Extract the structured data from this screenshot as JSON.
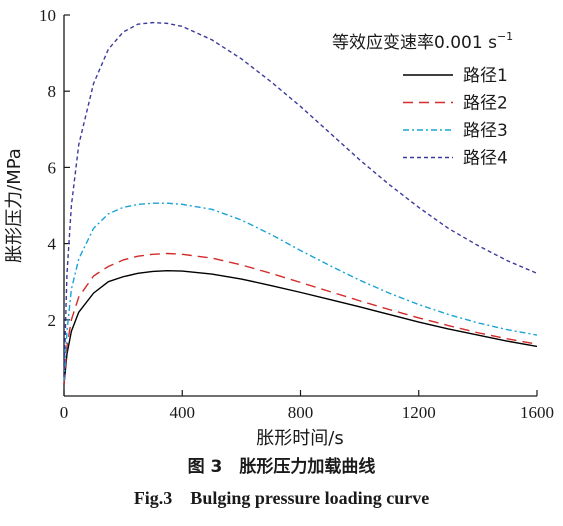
{
  "chart_data": {
    "type": "line",
    "xlabel": "胀形时间/s",
    "ylabel": "胀形压力/MPa",
    "xlim": [
      0,
      1600
    ],
    "ylim": [
      0,
      10
    ],
    "xticks": [
      0,
      400,
      800,
      1200,
      1600
    ],
    "yticks": [
      2,
      4,
      6,
      8,
      10
    ],
    "grid": false,
    "legend_title": "等效应变速率0.001 s",
    "legend_title_sup": "−1",
    "legend_position": "top-right",
    "series": [
      {
        "name": "路径1",
        "color": "#000000",
        "dash": "solid",
        "x": [
          0,
          10,
          25,
          50,
          100,
          150,
          200,
          250,
          300,
          350,
          400,
          500,
          600,
          700,
          800,
          900,
          1000,
          1100,
          1200,
          1300,
          1400,
          1500,
          1600
        ],
        "y": [
          0.3,
          1.1,
          1.7,
          2.2,
          2.7,
          3.0,
          3.13,
          3.22,
          3.27,
          3.29,
          3.28,
          3.2,
          3.07,
          2.9,
          2.72,
          2.53,
          2.34,
          2.14,
          1.94,
          1.76,
          1.6,
          1.44,
          1.3
        ]
      },
      {
        "name": "路径2",
        "color": "#d42a2a",
        "dash": "10,6",
        "x": [
          0,
          10,
          25,
          50,
          100,
          150,
          200,
          250,
          300,
          350,
          400,
          500,
          600,
          700,
          800,
          900,
          1000,
          1100,
          1200,
          1300,
          1400,
          1500,
          1600
        ],
        "y": [
          0.3,
          1.3,
          2.0,
          2.6,
          3.15,
          3.4,
          3.57,
          3.67,
          3.72,
          3.74,
          3.72,
          3.62,
          3.44,
          3.22,
          2.98,
          2.74,
          2.5,
          2.27,
          2.05,
          1.85,
          1.66,
          1.5,
          1.36
        ]
      },
      {
        "name": "路径3",
        "color": "#1aa3d6",
        "dash": "6,3,2,3",
        "x": [
          0,
          10,
          25,
          50,
          100,
          150,
          200,
          250,
          300,
          350,
          400,
          500,
          600,
          700,
          800,
          900,
          1000,
          1100,
          1200,
          1300,
          1400,
          1500,
          1600
        ],
        "y": [
          0.4,
          1.7,
          2.8,
          3.6,
          4.4,
          4.78,
          4.95,
          5.03,
          5.06,
          5.06,
          5.03,
          4.9,
          4.62,
          4.24,
          3.82,
          3.42,
          3.04,
          2.7,
          2.4,
          2.14,
          1.92,
          1.74,
          1.6
        ]
      },
      {
        "name": "路径4",
        "color": "#3b3b9c",
        "dash": "4,3",
        "x": [
          0,
          10,
          25,
          50,
          100,
          150,
          200,
          250,
          300,
          350,
          400,
          500,
          600,
          700,
          800,
          900,
          1000,
          1100,
          1200,
          1300,
          1400,
          1500,
          1600
        ],
        "y": [
          0.5,
          3.2,
          5.0,
          6.6,
          8.2,
          9.1,
          9.55,
          9.76,
          9.8,
          9.78,
          9.7,
          9.35,
          8.85,
          8.25,
          7.6,
          6.9,
          6.2,
          5.55,
          4.95,
          4.4,
          3.95,
          3.55,
          3.22
        ]
      }
    ]
  },
  "caption": {
    "cn": "图 3　胀形压力加载曲线",
    "en": "Fig.3　Bulging pressure loading curve"
  }
}
